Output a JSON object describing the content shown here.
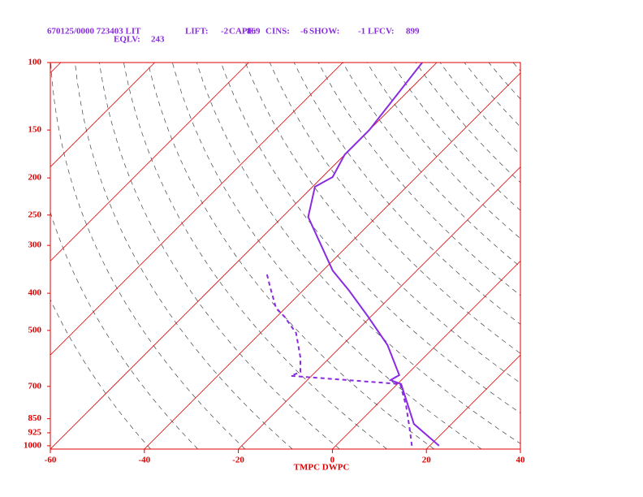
{
  "chart_data": {
    "type": "skewt",
    "header": {
      "station": "670125/0000 723403 LIT",
      "indices": [
        {
          "label": "LIFT:",
          "value": -2
        },
        {
          "label": "CAPE:",
          "value": 869
        },
        {
          "label": "CINS:",
          "value": -6
        },
        {
          "label": "SHOW:",
          "value": -1
        },
        {
          "label": "LFCV:",
          "value": 899
        },
        {
          "label": "EQLV:",
          "value": 243
        }
      ]
    },
    "xlabel": "TMPC DWPC",
    "xlim": [
      -60,
      40
    ],
    "xticks": [
      -60,
      -40,
      -20,
      0,
      20,
      40
    ],
    "ylim": [
      1020,
      100
    ],
    "yticks": [
      1000,
      925,
      850,
      700,
      500,
      400,
      300,
      250,
      200,
      150,
      100
    ],
    "log_scale_y": true,
    "axis_color": "#e00000",
    "series": [
      {
        "color": "#8a2be2",
        "dashed": false,
        "pressure": [
          1000,
          877,
          690,
          674,
          654,
          546,
          460,
          394,
          349,
          253,
          211,
          199,
          174,
          150,
          100
        ],
        "temperature": [
          22,
          12,
          0.8,
          -2.3,
          -1.5,
          -10.4,
          -20.6,
          -30.1,
          -37.9,
          -54.5,
          -59.5,
          -57.8,
          -60,
          -60,
          -63.1
        ]
      },
      {
        "color": "#8a2be2",
        "dashed": true,
        "pressure": [
          1000,
          911,
          787,
          690,
          657,
          642,
          588,
          508,
          460,
          438,
          388,
          352
        ],
        "temperature": [
          16.2,
          12.5,
          6.5,
          0.6,
          -24.4,
          -23.2,
          -26.3,
          -32.4,
          -38.4,
          -41.9,
          -47.4,
          -51.7
        ]
      }
    ]
  }
}
